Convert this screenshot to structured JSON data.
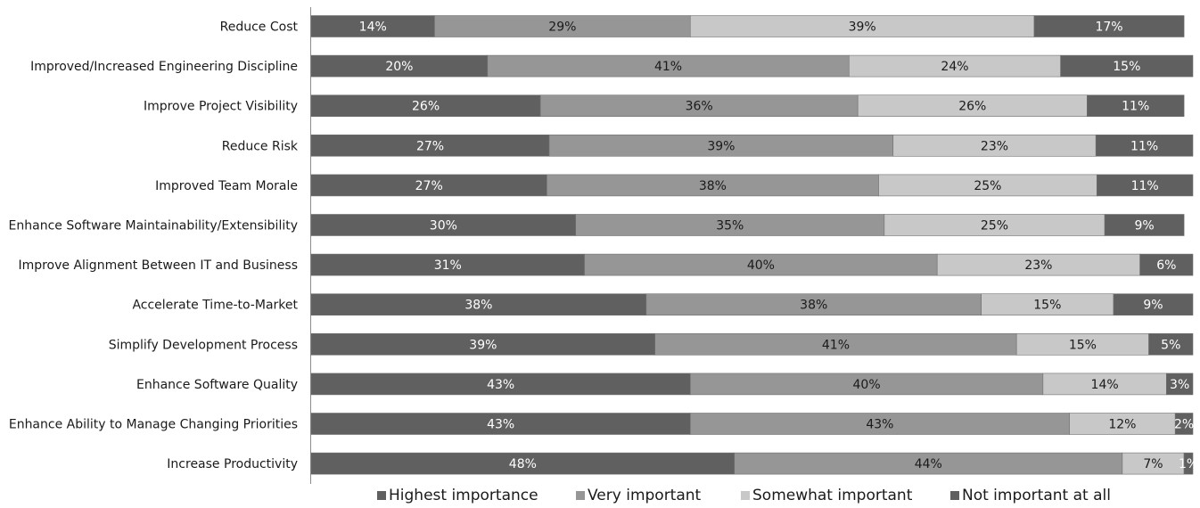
{
  "chart_data": {
    "type": "bar",
    "orientation": "horizontal",
    "stacked": true,
    "categories": [
      "Reduce Cost",
      "Improved/Increased Engineering Discipline",
      "Improve Project Visibility",
      "Reduce Risk",
      "Improved Team Morale",
      "Enhance Software Maintainability/Extensibility",
      "Improve Alignment Between IT and Business",
      "Accelerate Time-to-Market",
      "Simplify Development Process",
      "Enhance Software Quality",
      "Enhance Ability to Manage Changing Priorities",
      "Increase Productivity"
    ],
    "series": [
      {
        "name": "Highest importance",
        "color": "#606060",
        "label_color": "#ffffff",
        "values": [
          14,
          20,
          26,
          27,
          27,
          30,
          31,
          38,
          39,
          43,
          43,
          48
        ],
        "labels": [
          "14%",
          "20%",
          "26%",
          "27%",
          "27%",
          "30%",
          "31%",
          "38%",
          "39%",
          "43%",
          "43%",
          "48%"
        ]
      },
      {
        "name": "Very important",
        "color": "#969696",
        "label_color": "#1a1a1a",
        "values": [
          29,
          41,
          36,
          39,
          38,
          35,
          40,
          38,
          41,
          40,
          43,
          44
        ],
        "labels": [
          "29%",
          "41%",
          "36%",
          "39%",
          "38%",
          "35%",
          "40%",
          "38%",
          "41%",
          "40%",
          "43%",
          "44%"
        ]
      },
      {
        "name": "Somewhat important",
        "color": "#c8c8c8",
        "label_color": "#1a1a1a",
        "values": [
          39,
          24,
          26,
          23,
          25,
          25,
          23,
          15,
          15,
          14,
          12,
          7
        ],
        "labels": [
          "39%",
          "24%",
          "26%",
          "23%",
          "25%",
          "25%",
          "23%",
          "15%",
          "15%",
          "14%",
          "12%",
          "7%"
        ]
      },
      {
        "name": "Not important at all",
        "color": "#606060",
        "label_color": "#ffffff",
        "values": [
          17,
          15,
          11,
          11,
          11,
          9,
          6,
          9,
          5,
          3,
          2,
          1
        ],
        "labels": [
          "17%",
          "15%",
          "11%",
          "11%",
          "11%",
          "9%",
          "6%",
          "9%",
          "5%",
          "3%",
          "2%",
          "1%"
        ]
      }
    ],
    "xlim": [
      0,
      100
    ],
    "grid": false,
    "legend_position": "bottom"
  }
}
